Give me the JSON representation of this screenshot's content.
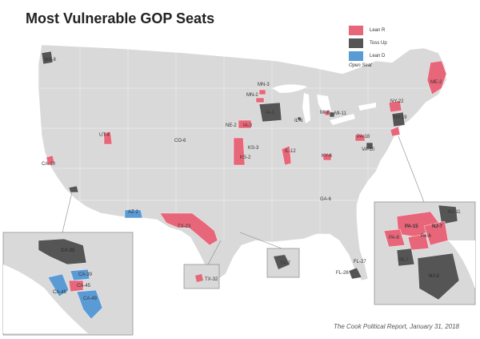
{
  "title": "Most Vulnerable GOP Seats",
  "legend": {
    "items": [
      {
        "label": "Lean R",
        "color": "#e8667a"
      },
      {
        "label": "Toss Up",
        "color": "#555555"
      },
      {
        "label": "Lean D",
        "color": "#5b9bd5"
      }
    ],
    "open_seat_label": "Open Seat"
  },
  "source": "The Cook Political Report, January 31, 2018",
  "map": {
    "land_color": "#d9d9d9",
    "water_color": "#ffffff",
    "district_labels": [
      {
        "id": "WA-8",
        "text": "WA-8"
      },
      {
        "id": "MN-3",
        "text": "MN-3"
      },
      {
        "id": "MN-2",
        "text": "MN-2"
      },
      {
        "id": "IA-1",
        "text": "IA-1"
      },
      {
        "id": "IL-6",
        "text": "IL-6"
      },
      {
        "id": "MI-8",
        "text": "MI-8"
      },
      {
        "id": "MI-11",
        "text": "MI-11"
      },
      {
        "id": "NY-22",
        "text": "NY-22"
      },
      {
        "id": "NY-19",
        "text": "NY-19"
      },
      {
        "id": "ME-2",
        "text": "ME-2"
      },
      {
        "id": "UT-4",
        "text": "UT-4"
      },
      {
        "id": "CO-6",
        "text": "CO-6"
      },
      {
        "id": "NE-2",
        "text": "NE-2"
      },
      {
        "id": "IA-3",
        "text": "IA-3"
      },
      {
        "id": "KS-3",
        "text": "KS-3"
      },
      {
        "id": "KS-2",
        "text": "KS-2"
      },
      {
        "id": "IL-12",
        "text": "IL-12"
      },
      {
        "id": "KY-6",
        "text": "KY-6"
      },
      {
        "id": "PA-18",
        "text": "PA-18"
      },
      {
        "id": "VA-10",
        "text": "VA-10"
      },
      {
        "id": "CA-10",
        "text": "CA-10"
      },
      {
        "id": "GA-6",
        "text": "GA-6"
      },
      {
        "id": "AZ-2",
        "text": "AZ-2"
      },
      {
        "id": "TX-23",
        "text": "TX-23"
      },
      {
        "id": "TX-7",
        "text": "TX-7"
      },
      {
        "id": "TX-32",
        "text": "TX-32"
      },
      {
        "id": "FL-27",
        "text": "FL-27"
      },
      {
        "id": "FL-26",
        "text": "FL-26"
      },
      {
        "id": "CA-25",
        "text": "CA-25"
      },
      {
        "id": "CA-39",
        "text": "CA-39"
      },
      {
        "id": "CA-45",
        "text": "CA-45"
      },
      {
        "id": "CA-48",
        "text": "CA-48"
      },
      {
        "id": "CA-49",
        "text": "CA-49"
      },
      {
        "id": "NJ-11",
        "text": "NJ-11"
      },
      {
        "id": "PA-15",
        "text": "PA-15"
      },
      {
        "id": "NJ-7",
        "text": "NJ-7"
      },
      {
        "id": "PA-8",
        "text": "PA-8"
      },
      {
        "id": "PA-6",
        "text": "PA-6"
      },
      {
        "id": "PA-7",
        "text": "PA-7"
      },
      {
        "id": "NJ-2",
        "text": "NJ-2"
      }
    ]
  }
}
